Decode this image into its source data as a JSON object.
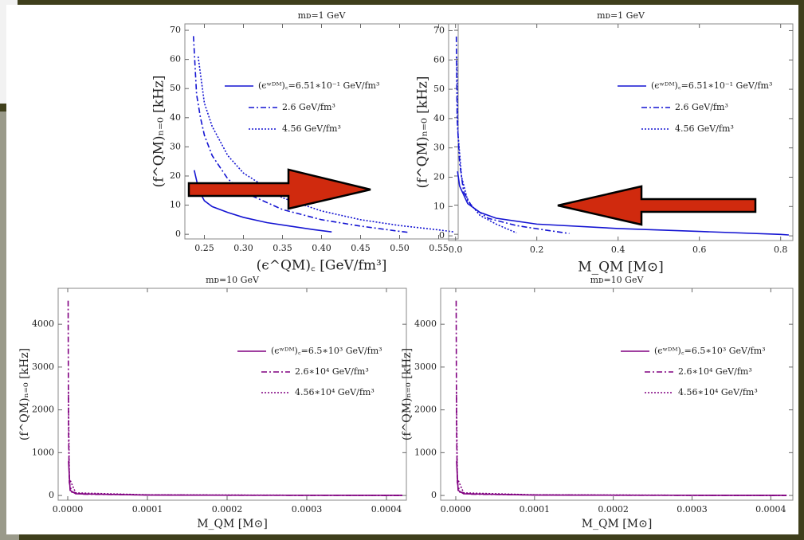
{
  "chart_data": [
    {
      "type": "line",
      "title": "mᴅ=1 GeV",
      "xlabel": "(ϵ^QM)꜀ [GeV/fm³]",
      "ylabel": "(f^QM)ₙ₌₀ [kHz]",
      "xlim": [
        0.225,
        0.575
      ],
      "ylim": [
        -1.6,
        72.2
      ],
      "xticks": [
        0.25,
        {
          "value": 0.3,
          "label": "0.30"
        },
        0.35,
        {
          "value": 0.4,
          "label": "0.40"
        },
        0.45,
        {
          "value": 0.5,
          "label": "0.50"
        },
        0.55
      ],
      "yticks": [
        0,
        10,
        20,
        30,
        40,
        50,
        60,
        70
      ],
      "series": [
        {
          "name": "(ϵʷᴰᴹ)꜀=6.51∗10⁻¹ GeV/fm³",
          "color": "#1414d2",
          "dash": "solid",
          "x": [
            0.237,
            0.243,
            0.25,
            0.26,
            0.28,
            0.3,
            0.33,
            0.36,
            0.39,
            0.413
          ],
          "values": [
            22,
            15,
            11.5,
            9.5,
            7.5,
            5.8,
            4,
            2.8,
            1.6,
            0.8
          ]
        },
        {
          "name": "2.6 GeV/fm³",
          "color": "#1414d2",
          "dash": "dashdot",
          "x": [
            0.236,
            0.24,
            0.245,
            0.25,
            0.26,
            0.28,
            0.3,
            0.35,
            0.4,
            0.45,
            0.5,
            0.513
          ],
          "values": [
            68,
            48,
            40,
            34,
            27,
            19,
            14.5,
            8.5,
            5,
            2.8,
            1,
            0.6
          ]
        },
        {
          "name": "4.56 GeV/fm³",
          "color": "#1414d2",
          "dash": "dotted",
          "x": [
            0.242,
            0.25,
            0.26,
            0.28,
            0.3,
            0.35,
            0.4,
            0.45,
            0.5,
            0.55,
            0.57
          ],
          "values": [
            61,
            45,
            37,
            27,
            21,
            12.5,
            8,
            5,
            3,
            1.5,
            0.8
          ]
        }
      ]
    },
    {
      "type": "line",
      "title": "mᴅ=1 GeV",
      "xlabel": "M_QM [M⊙]",
      "ylabel": "(f^QM)ₙ₌₀ [kHz]",
      "xlim": [
        -0.017,
        0.83
      ],
      "ylim": [
        -1.6,
        72.3
      ],
      "xticks": [
        {
          "value": 0,
          "label": "0.0"
        },
        0.2,
        0.4,
        0.6,
        0.8
      ],
      "yticks": [
        0,
        10,
        20,
        30,
        40,
        50,
        60,
        70
      ],
      "series": [
        {
          "name": "(ϵʷᴰᴹ)꜀=6.51∗10⁻¹ GeV/fm³",
          "color": "#1414d2",
          "dash": "solid",
          "x": [
            0.005,
            0.01,
            0.03,
            0.06,
            0.1,
            0.2,
            0.4,
            0.6,
            0.8,
            0.82
          ],
          "values": [
            22,
            17,
            11,
            8,
            6,
            4,
            2.5,
            1.5,
            0.5,
            0.3
          ]
        },
        {
          "name": "2.6 GeV/fm³",
          "color": "#1414d2",
          "dash": "dashdot",
          "x": [
            0.002,
            0.004,
            0.01,
            0.02,
            0.04,
            0.08,
            0.15,
            0.22,
            0.28
          ],
          "values": [
            68,
            40,
            25,
            15,
            10,
            6,
            3.5,
            2,
            0.8
          ]
        },
        {
          "name": "4.56 GeV/fm³",
          "color": "#1414d2",
          "dash": "dotted",
          "x": [
            0.003,
            0.006,
            0.015,
            0.03,
            0.06,
            0.1,
            0.15
          ],
          "values": [
            61,
            35,
            20,
            12,
            7,
            4,
            1
          ]
        }
      ]
    },
    {
      "type": "line",
      "title": "mᴅ=10 GeV",
      "xlabel": "M_QM [M⊙]",
      "ylabel": "(f^QM)ₙ₌₀ [kHz]",
      "xlim": [
        -1.2e-05,
        0.000425
      ],
      "ylim": [
        -110,
        4840
      ],
      "xticks": [
        {
          "value": 0,
          "label": "0.0000"
        },
        0.0001,
        0.0002,
        0.0003,
        0.0004
      ],
      "yticks": [
        0,
        1000,
        2000,
        3000,
        4000
      ],
      "series": [
        {
          "name": "(ϵʷᴰᴹ)꜀=6.5∗10³ GeV/fm³",
          "color": "#800080",
          "dash": "solid",
          "x": [
            1e-06,
            3e-06,
            1e-05,
            0.0001,
            0.0003,
            0.00042
          ],
          "values": [
            800,
            120,
            40,
            10,
            4,
            2
          ]
        },
        {
          "name": "2.6∗10⁴ GeV/fm³",
          "color": "#800080",
          "dash": "dashdot",
          "x": [
            5e-07,
            1e-06,
            2e-06,
            5e-06,
            2e-05,
            0.0001,
            0.0002,
            0.0003,
            0.00042
          ],
          "values": [
            4550,
            1500,
            300,
            80,
            30,
            12,
            6,
            3,
            1
          ]
        },
        {
          "name": "4.56∗10⁴ GeV/fm³",
          "color": "#800080",
          "dash": "dotted",
          "x": [
            8e-07,
            2e-06,
            1e-05,
            0.0001,
            0.0003,
            0.00042
          ],
          "values": [
            2500,
            400,
            60,
            15,
            5,
            2
          ]
        }
      ]
    },
    {
      "type": "line",
      "title": "mᴅ=10 GeV",
      "xlabel": "M_QM [M⊙]",
      "ylabel": "(f^QM)ₙ₌₀ [kHz]",
      "xlim": [
        -1.92e-05,
        0.000428
      ],
      "ylim": [
        -110,
        4840
      ],
      "xticks": [
        {
          "value": 0,
          "label": "0.0000"
        },
        0.0001,
        0.0002,
        0.0003,
        0.0004
      ],
      "yticks": [
        0,
        1000,
        2000,
        3000,
        4000
      ],
      "series": [
        {
          "name": "(ϵʷᴰᴹ)꜀=6.5∗10³ GeV/fm³",
          "color": "#800080",
          "dash": "solid",
          "x": [
            1e-06,
            3e-06,
            1e-05,
            0.0001,
            0.0003,
            0.00042
          ],
          "values": [
            800,
            120,
            40,
            10,
            4,
            2
          ]
        },
        {
          "name": "2.6∗10⁴ GeV/fm³",
          "color": "#800080",
          "dash": "dashdot",
          "x": [
            5e-07,
            1e-06,
            2e-06,
            5e-06,
            2e-05,
            0.0001,
            0.0002,
            0.0003,
            0.00042
          ],
          "values": [
            4550,
            1500,
            300,
            80,
            30,
            12,
            6,
            3,
            1
          ]
        },
        {
          "name": "4.56∗10⁴ GeV/fm³",
          "color": "#800080",
          "dash": "dotted",
          "x": [
            8e-07,
            2e-06,
            1e-05,
            0.0001,
            0.0003,
            0.00042
          ],
          "values": [
            2500,
            400,
            60,
            15,
            5,
            2
          ]
        }
      ]
    }
  ]
}
